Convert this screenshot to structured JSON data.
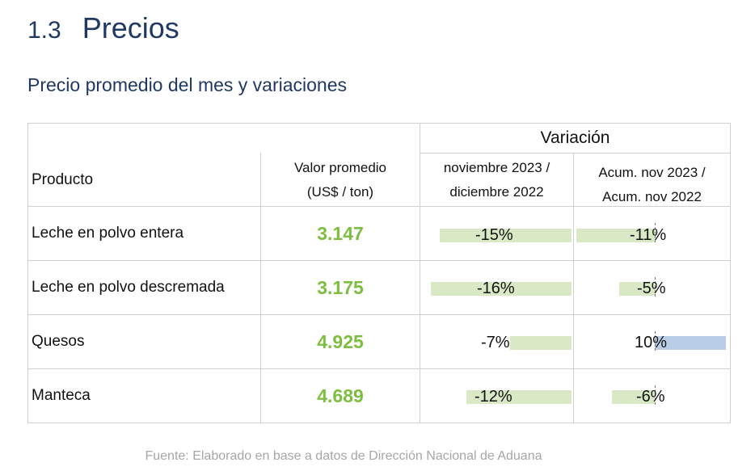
{
  "section": {
    "number": "1.3",
    "title": "Precios"
  },
  "subtitle": "Precio promedio del mes y variaciones",
  "table": {
    "group_header": "Variación",
    "columns": {
      "product": "Producto",
      "value_line1": "Valor promedio",
      "value_line2": "(US$ / ton)",
      "var1_line1": "noviembre 2023 /",
      "var1_line2": "diciembre 2022",
      "var2_line1": "Acum. nov 2023 /",
      "var2_line2": "Acum. nov 2022"
    },
    "rows": [
      {
        "product": "Leche en polvo entera",
        "value": "3.147",
        "var1": "-15%",
        "var1_pct": -15,
        "var2": "-11%",
        "var2_pct": -11
      },
      {
        "product": "Leche en polvo descremada",
        "value": "3.175",
        "var1": "-16%",
        "var1_pct": -16,
        "var2": "-5%",
        "var2_pct": -5
      },
      {
        "product": "Quesos",
        "value": "4.925",
        "var1": "-7%",
        "var1_pct": -7,
        "var2": "10%",
        "var2_pct": 10
      },
      {
        "product": "Manteca",
        "value": "4.689",
        "var1": "-12%",
        "var1_pct": -12,
        "var2": "-6%",
        "var2_pct": -6
      }
    ],
    "colors": {
      "negative_bar": "#d9e9c6",
      "positive_bar": "#b9cee6",
      "value_text": "#7dbd3f"
    }
  },
  "footnote": "Fuente: Elaborado en base a datos de Dirección Nacional de Aduana"
}
